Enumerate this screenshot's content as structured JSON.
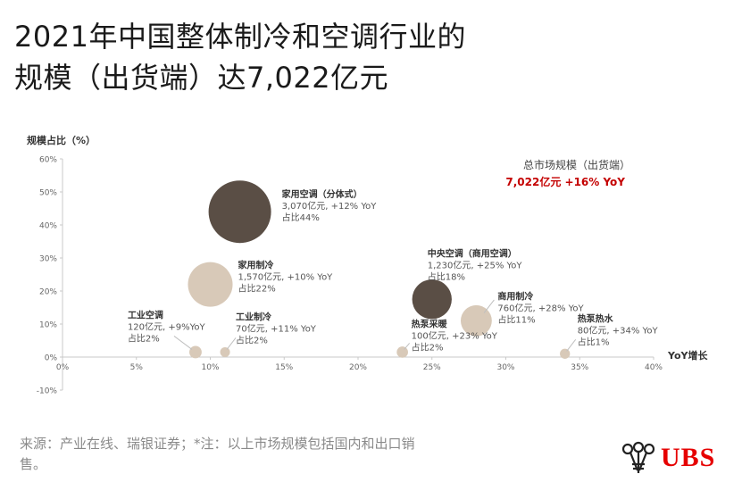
{
  "title": {
    "line1": "2021年中国整体制冷和空调行业的",
    "line2": "规模（出货端）达7,022亿元"
  },
  "chart_data": {
    "type": "bubble",
    "ylabel": "规模占比（%）",
    "xlabel": "YoY增长",
    "xlim": [
      0,
      40
    ],
    "ylim": [
      -10,
      60
    ],
    "x_ticks": [
      0,
      5,
      10,
      15,
      20,
      25,
      30,
      35,
      40
    ],
    "y_ticks": [
      -10,
      0,
      10,
      20,
      30,
      40,
      50,
      60
    ],
    "x_tick_labels": [
      "0%",
      "5%",
      "10%",
      "15%",
      "20%",
      "25%",
      "30%",
      "35%",
      "40%"
    ],
    "y_tick_labels": [
      "-10%",
      "0%",
      "10%",
      "20%",
      "30%",
      "40%",
      "50%",
      "60%"
    ],
    "grid": false,
    "total": {
      "label": "总市场规模（出货端）",
      "value": "7,022亿元 +16% YoY"
    },
    "points": [
      {
        "name": "家用空调（分体式）",
        "detail": "3,070亿元, +12% YoY",
        "share": "占比44%",
        "x": 12,
        "y": 44,
        "size": 3070,
        "color": "#5a4e45"
      },
      {
        "name": "家用制冷",
        "detail": "1,570亿元, +10% YoY",
        "share": "占比22%",
        "x": 10,
        "y": 22,
        "size": 1570,
        "color": "#d8c9b8"
      },
      {
        "name": "中央空调（商用空调）",
        "detail": "1,230亿元, +25% YoY",
        "share": "占比18%",
        "x": 25,
        "y": 17.5,
        "size": 1230,
        "color": "#5a4e45"
      },
      {
        "name": "商用制冷",
        "detail": "760亿元, +28% YoY",
        "share": "占比11%",
        "x": 28,
        "y": 11,
        "size": 760,
        "color": "#d8c9b8"
      },
      {
        "name": "工业空调",
        "detail": "120亿元, +9%YoY",
        "share": "占比2%",
        "x": 9,
        "y": 1.5,
        "size": 120,
        "color": "#d8c9b8"
      },
      {
        "name": "工业制冷",
        "detail": "70亿元, +11% YoY",
        "share": "占比2%",
        "x": 11,
        "y": 1.5,
        "size": 70,
        "color": "#d8c9b8"
      },
      {
        "name": "热泵采暖",
        "detail": "100亿元, +23% YoY",
        "share": "占比2%",
        "x": 23,
        "y": 1.5,
        "size": 100,
        "color": "#d8c9b8"
      },
      {
        "name": "热泵热水",
        "detail": "80亿元, +34% YoY",
        "share": "占比1%",
        "x": 34,
        "y": 1,
        "size": 80,
        "color": "#d8c9b8"
      }
    ]
  },
  "footnote": "来源：产业在线、瑞银证券；*注：以上市场规模包括国内和出口销售。",
  "logo": {
    "text": "UBS",
    "icon": "ubs-keys-icon",
    "color": "#e60000"
  }
}
